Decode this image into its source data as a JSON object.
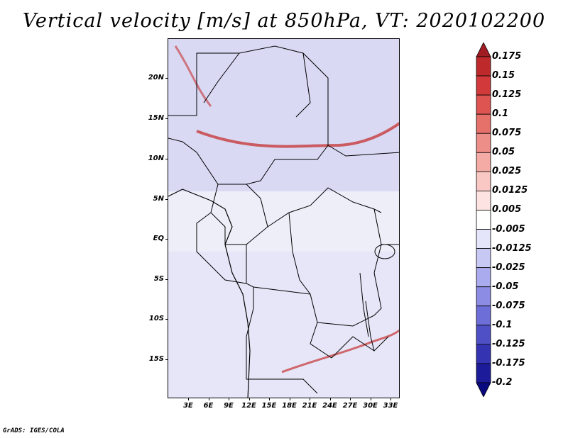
{
  "title": "Vertical velocity [m/s] at 850hPa, VT: 2020102200",
  "footer": "GrADS: IGES/COLA",
  "map": {
    "lat_labels": [
      "20N",
      "15N",
      "10N",
      "5N",
      "EQ",
      "5S",
      "10S",
      "15S"
    ],
    "lon_labels": [
      "3E",
      "6E",
      "9E",
      "12E",
      "15E",
      "18E",
      "21E",
      "24E",
      "27E",
      "30E",
      "33E"
    ]
  },
  "colorbar": {
    "levels": [
      "0.175",
      "0.15",
      "0.125",
      "0.1",
      "0.075",
      "0.05",
      "0.025",
      "0.0125",
      "0.005",
      "-0.005",
      "-0.0125",
      "-0.025",
      "-0.05",
      "-0.075",
      "-0.1",
      "-0.125",
      "-0.175",
      "-0.2"
    ],
    "colors": [
      "#a01c22",
      "#be2a2c",
      "#d2393a",
      "#de5450",
      "#e6706a",
      "#ee8e88",
      "#f4aba6",
      "#f9c8c4",
      "#fde4e2",
      "#ffffff",
      "#e4e4fb",
      "#c8c8f5",
      "#aaaaee",
      "#8c8ce4",
      "#6e6ed8",
      "#5050c6",
      "#3434b2",
      "#1c1c9a",
      "#0a0a80"
    ]
  }
}
